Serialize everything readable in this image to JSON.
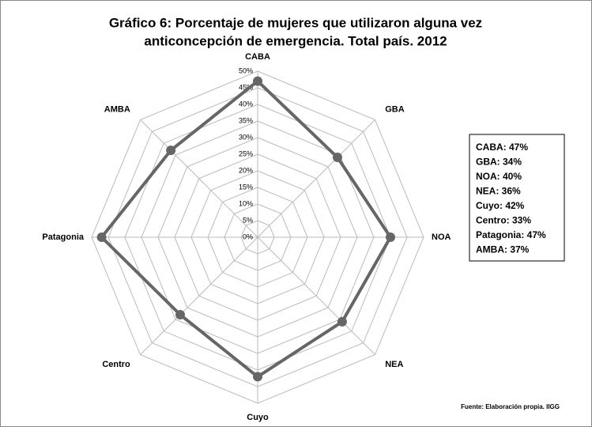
{
  "chart_data": {
    "type": "radar",
    "title": "Gráfico 6: Porcentaje de mujeres que utilizaron alguna vez",
    "subtitle": "anticoncepción de emergencia. Total país. 2012",
    "categories": [
      "CABA",
      "GBA",
      "NOA",
      "NEA",
      "Cuyo",
      "Centro",
      "Patagonia",
      "AMBA"
    ],
    "values": [
      47,
      34,
      40,
      36,
      42,
      33,
      47,
      37
    ],
    "value_labels": [
      "CABA: 47%",
      "GBA: 34%",
      "NOA: 40%",
      "NEA: 36%",
      "Cuyo: 42%",
      "Centro: 33%",
      "Patagonia: 47%",
      "AMBA: 37%"
    ],
    "color": "#666666",
    "ylim": [
      0,
      50
    ],
    "yticks": [
      {
        "value": 0,
        "label": "0%"
      },
      {
        "value": 5,
        "label": "5%"
      },
      {
        "value": 10,
        "label": "10%"
      },
      {
        "value": 15,
        "label": "15%"
      },
      {
        "value": 20,
        "label": "20%"
      },
      {
        "value": 25,
        "label": "25%"
      },
      {
        "value": 30,
        "label": "30%"
      },
      {
        "value": 35,
        "label": "35%"
      },
      {
        "value": 40,
        "label": "40%"
      },
      {
        "value": 45,
        "label": "45%"
      },
      {
        "value": 50,
        "label": "50%"
      }
    ],
    "grid": true,
    "source": "Fuente: Elaboración propia. IIGG"
  }
}
